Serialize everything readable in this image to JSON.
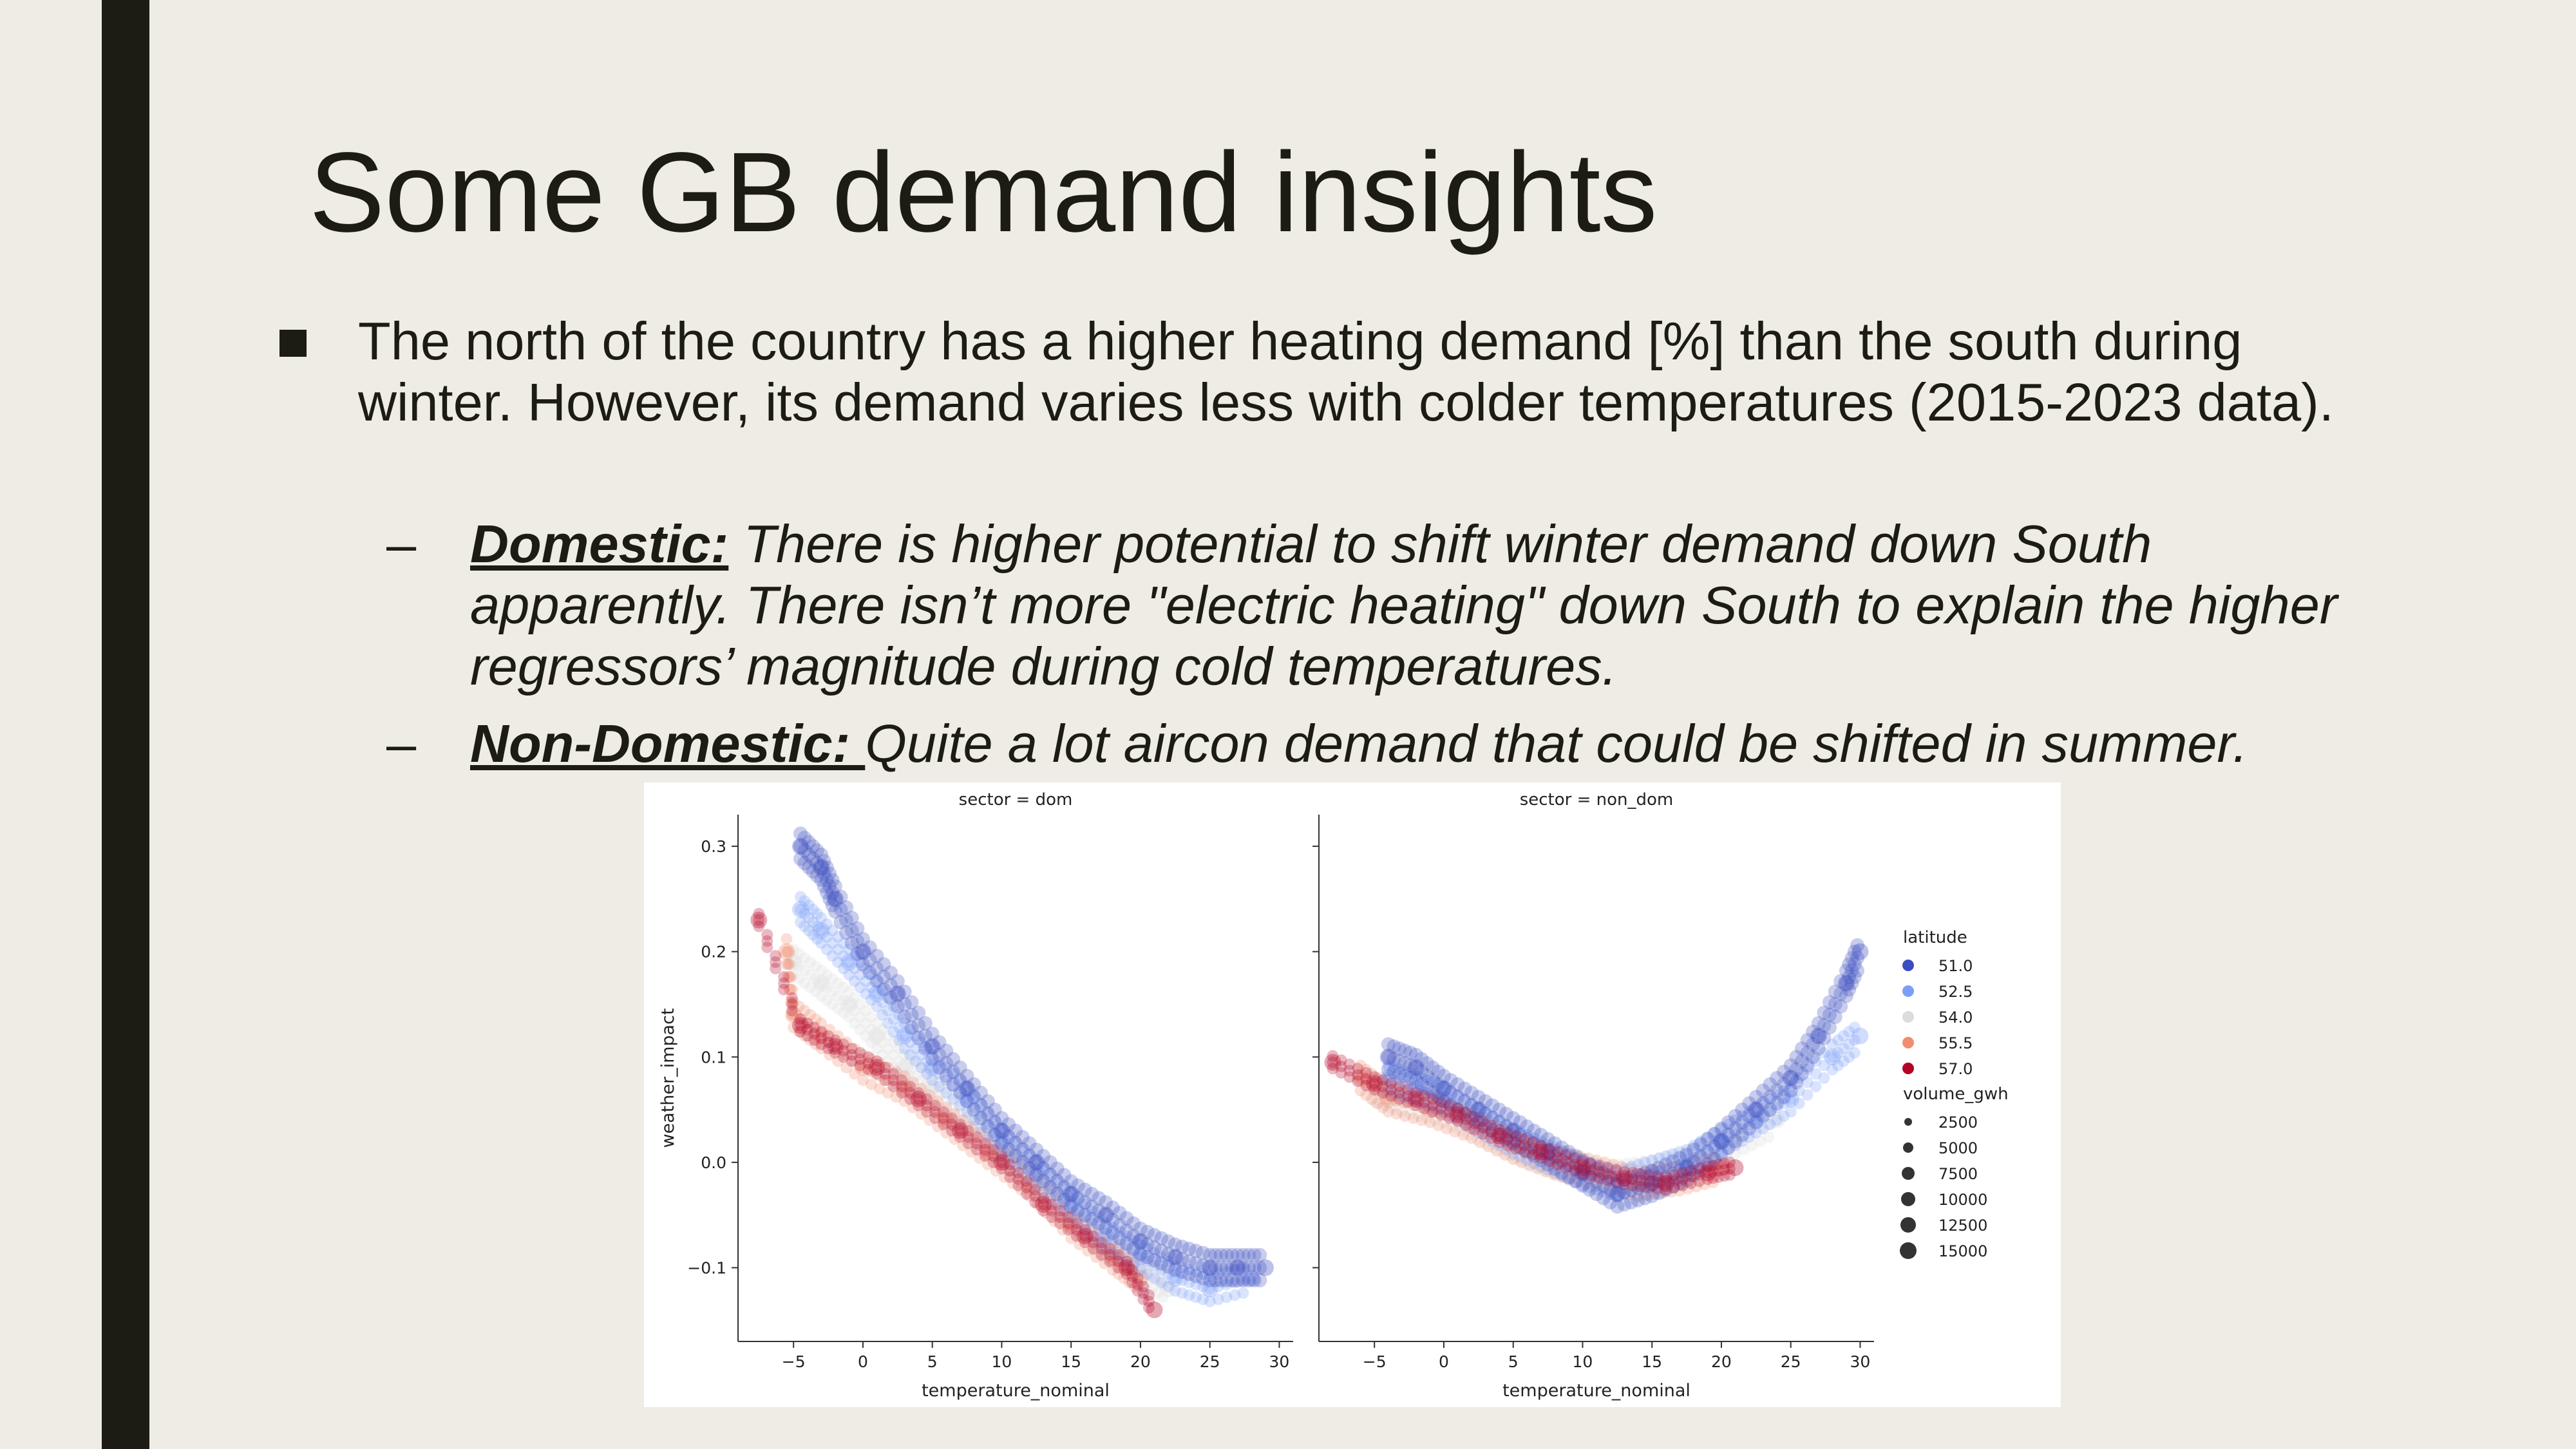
{
  "slide": {
    "title": "Some GB demand insights",
    "bullet": "The north of the country has a higher heating demand [%] than the south during winter. However, its demand varies less with colder temperatures (2015-2023 data).",
    "subs": [
      {
        "dash": "–",
        "label": "Domestic:",
        "text": " There is higher potential to shift winter demand down South apparently. There isn’t more \"electric heating\" down South to explain the higher regressors’ magnitude during cold temperatures."
      },
      {
        "dash": "–",
        "label": "Non-Domestic: ",
        "text": "Quite a lot aircon demand that could be shifted in summer."
      }
    ]
  },
  "colors": {
    "background": "#eeece4",
    "text": "#1c1c14",
    "lat_51": "#3b4cc0",
    "lat_52_5": "#7b9ff9",
    "lat_54": "#dddcdc",
    "lat_55_5": "#f18d6f",
    "lat_57": "#b40426"
  },
  "chart_data": {
    "type": "scatter",
    "ylabel": "weather_impact",
    "ylim": [
      -0.17,
      0.33
    ],
    "yticks": [
      -0.1,
      0.0,
      0.1,
      0.2,
      0.3
    ],
    "ytick_labels": [
      "−0.1",
      "0.0",
      "0.1",
      "0.2",
      "0.3"
    ],
    "xlim": [
      -9,
      31
    ],
    "xticks": [
      -5,
      0,
      5,
      10,
      15,
      20,
      25,
      30
    ],
    "xtick_labels": [
      "−5",
      "0",
      "5",
      "10",
      "15",
      "20",
      "25",
      "30"
    ],
    "panels": [
      {
        "title": "sector = dom",
        "xlabel": "temperature_nominal",
        "series": [
          {
            "latitude": 51.0,
            "points": [
              [
                -4.5,
                0.3
              ],
              [
                -3,
                0.28
              ],
              [
                -2,
                0.25
              ],
              [
                0,
                0.2
              ],
              [
                2.5,
                0.16
              ],
              [
                5,
                0.11
              ],
              [
                7.5,
                0.07
              ],
              [
                10,
                0.03
              ],
              [
                12.5,
                0.0
              ],
              [
                15,
                -0.03
              ],
              [
                17.5,
                -0.05
              ],
              [
                20,
                -0.075
              ],
              [
                22.5,
                -0.09
              ],
              [
                25,
                -0.1
              ],
              [
                27,
                -0.1
              ],
              [
                29,
                -0.1
              ]
            ]
          },
          {
            "latitude": 52.5,
            "points": [
              [
                -4.5,
                0.24
              ],
              [
                -3,
                0.22
              ],
              [
                -1,
                0.19
              ],
              [
                1,
                0.16
              ],
              [
                3,
                0.12
              ],
              [
                5,
                0.09
              ],
              [
                7.5,
                0.06
              ],
              [
                10,
                0.02
              ],
              [
                12.5,
                -0.01
              ],
              [
                15,
                -0.04
              ],
              [
                17.5,
                -0.07
              ],
              [
                20,
                -0.09
              ],
              [
                22.5,
                -0.11
              ],
              [
                25,
                -0.12
              ],
              [
                28,
                -0.11
              ]
            ]
          },
          {
            "latitude": 54.0,
            "points": [
              [
                -5,
                0.19
              ],
              [
                -3,
                0.17
              ],
              [
                -1,
                0.15
              ],
              [
                1,
                0.12
              ],
              [
                3,
                0.09
              ],
              [
                5,
                0.07
              ],
              [
                7.5,
                0.04
              ],
              [
                10,
                0.01
              ],
              [
                12.5,
                -0.02
              ],
              [
                15,
                -0.05
              ],
              [
                17.5,
                -0.08
              ],
              [
                20,
                -0.1
              ],
              [
                22,
                -0.12
              ]
            ]
          },
          {
            "latitude": 55.5,
            "points": [
              [
                -5.5,
                0.2
              ],
              [
                -5,
                0.14
              ],
              [
                -3,
                0.12
              ],
              [
                0,
                0.09
              ],
              [
                3,
                0.07
              ],
              [
                6,
                0.04
              ],
              [
                9,
                0.01
              ],
              [
                12,
                -0.02
              ],
              [
                15,
                -0.06
              ],
              [
                18,
                -0.09
              ],
              [
                20,
                -0.11
              ]
            ]
          },
          {
            "latitude": 57.0,
            "points": [
              [
                -7.5,
                0.23
              ],
              [
                -4.5,
                0.13
              ],
              [
                -2,
                0.11
              ],
              [
                1,
                0.09
              ],
              [
                4,
                0.06
              ],
              [
                7,
                0.03
              ],
              [
                10,
                0.0
              ],
              [
                13,
                -0.04
              ],
              [
                16,
                -0.07
              ],
              [
                19,
                -0.1
              ],
              [
                21,
                -0.14
              ]
            ]
          }
        ]
      },
      {
        "title": "sector = non_dom",
        "xlabel": "temperature_nominal",
        "series": [
          {
            "latitude": 51.0,
            "points": [
              [
                -4,
                0.1
              ],
              [
                -2,
                0.09
              ],
              [
                0,
                0.07
              ],
              [
                2.5,
                0.05
              ],
              [
                5,
                0.03
              ],
              [
                7.5,
                0.01
              ],
              [
                10,
                -0.01
              ],
              [
                12.5,
                -0.03
              ],
              [
                15,
                -0.02
              ],
              [
                17.5,
                -0.005
              ],
              [
                20,
                0.02
              ],
              [
                22.5,
                0.05
              ],
              [
                25,
                0.08
              ],
              [
                27,
                0.12
              ],
              [
                29,
                0.17
              ],
              [
                30,
                0.2
              ]
            ]
          },
          {
            "latitude": 52.5,
            "points": [
              [
                -4,
                0.08
              ],
              [
                -2,
                0.07
              ],
              [
                0,
                0.06
              ],
              [
                2.5,
                0.04
              ],
              [
                5,
                0.02
              ],
              [
                7.5,
                0.005
              ],
              [
                10,
                -0.01
              ],
              [
                12.5,
                -0.02
              ],
              [
                15,
                -0.01
              ],
              [
                17.5,
                0.0
              ],
              [
                20,
                0.02
              ],
              [
                22.5,
                0.04
              ],
              [
                25,
                0.06
              ],
              [
                28,
                0.1
              ],
              [
                30,
                0.12
              ]
            ]
          },
          {
            "latitude": 54.0,
            "points": [
              [
                -5,
                0.07
              ],
              [
                -3,
                0.06
              ],
              [
                0,
                0.05
              ],
              [
                3,
                0.03
              ],
              [
                6,
                0.01
              ],
              [
                9,
                -0.005
              ],
              [
                12,
                -0.015
              ],
              [
                15,
                -0.01
              ],
              [
                18,
                0.0
              ],
              [
                21,
                0.02
              ],
              [
                24,
                0.04
              ]
            ]
          },
          {
            "latitude": 55.5,
            "points": [
              [
                -6,
                0.08
              ],
              [
                -4,
                0.06
              ],
              [
                -1,
                0.05
              ],
              [
                2,
                0.035
              ],
              [
                5,
                0.015
              ],
              [
                8,
                0.0
              ],
              [
                11,
                -0.01
              ],
              [
                14,
                -0.02
              ],
              [
                17,
                -0.015
              ],
              [
                20,
                -0.005
              ]
            ]
          },
          {
            "latitude": 57.0,
            "points": [
              [
                -8,
                0.095
              ],
              [
                -5,
                0.075
              ],
              [
                -2,
                0.06
              ],
              [
                1,
                0.045
              ],
              [
                4,
                0.025
              ],
              [
                7,
                0.01
              ],
              [
                10,
                -0.005
              ],
              [
                13,
                -0.015
              ],
              [
                16,
                -0.02
              ],
              [
                19,
                -0.01
              ],
              [
                21,
                -0.005
              ]
            ]
          }
        ]
      }
    ],
    "legend": {
      "placement": "right",
      "hue_title": "latitude",
      "hue_entries": [
        "51.0",
        "52.5",
        "54.0",
        "55.5",
        "57.0"
      ],
      "size_title": "volume_gwh",
      "size_entries": [
        "2500",
        "5000",
        "7500",
        "10000",
        "12500",
        "15000"
      ]
    }
  }
}
